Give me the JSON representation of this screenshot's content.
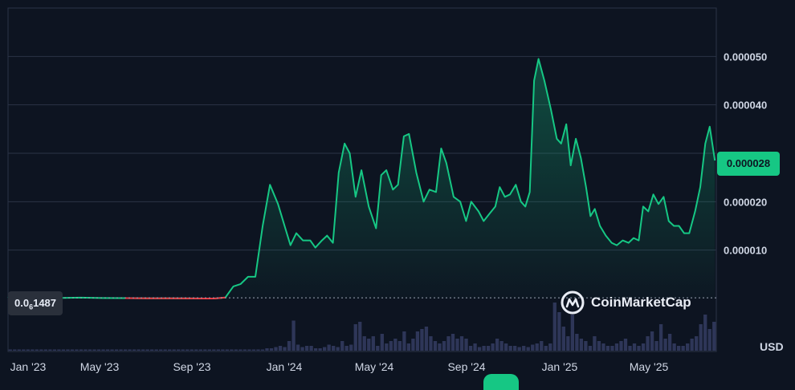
{
  "chart_data": {
    "type": "area",
    "x_labels": [
      "Jan '23",
      "May '23",
      "Sep '23",
      "Jan '24",
      "May '24",
      "Sep '24",
      "Jan '25",
      "May '25"
    ],
    "y_ticks": [
      "0.000010",
      "0.000020",
      "0.000040",
      "0.000050"
    ],
    "ylim": [
      0,
      6e-05
    ],
    "current_price_label": "0.000028",
    "baseline": {
      "prefix": "0.0",
      "zeros": "6",
      "suffix": "1487",
      "value": 1.487e-07
    },
    "currency": "USD",
    "line_color": "#16c784",
    "down_color": "#ea3943",
    "volume_color": "#2e3658",
    "series": [
      {
        "values": [
          1.5e-07,
          1.5e-07,
          1.5e-07,
          1.5e-07,
          1.5e-07,
          1.5e-07,
          1.5e-07,
          1.5e-07,
          1.5e-07,
          1.5e-07,
          1.5e-07,
          1.5e-07,
          1.5e-07,
          1.5e-07,
          1.5e-07,
          1.5e-07,
          1.5e-07,
          1.5e-07,
          1.5e-07,
          1.5e-07,
          1.5e-07,
          1.5e-07,
          1.5e-07,
          1.5e-07,
          1.5e-07,
          1.5e-07,
          1.5e-07,
          1.5e-07,
          1.5e-07,
          1.5e-07,
          1.5e-07,
          1.5e-07,
          1.5e-07,
          1.5e-07,
          1.5e-07,
          1.5e-07,
          1.5e-07,
          1.5e-07,
          1.5e-07,
          1.5e-07,
          1.5e-07,
          1.5e-07,
          1.5e-07,
          1.5e-07,
          1.5e-07,
          1.5e-07,
          1.5e-07,
          1.5e-07,
          1.5e-07,
          1.5e-07,
          1.5e-07,
          1.5e-07,
          1.5e-07,
          1.5e-07,
          1.5e-07,
          1.5e-07,
          1.5e-07,
          1.5e-07,
          1.5e-07,
          1.5e-07,
          1.5e-07,
          1.5e-07,
          1.5e-07,
          1.5e-07,
          1.5e-07,
          1.5e-07,
          1.5e-07,
          1.5e-07,
          1.5e-07,
          1.5e-07,
          1.5e-07,
          1.5e-07,
          1.5e-07,
          1.5e-07,
          1.5e-07,
          1.5e-07,
          1.5e-07,
          1.5e-07,
          1.5e-07,
          1.5e-07,
          1.5e-07,
          1.5e-07,
          1.5e-07,
          1.5e-07,
          1.5e-07,
          1.5e-07,
          1.5e-07,
          1.5e-07,
          1.5e-07,
          1.5e-07,
          1.5e-07,
          1.5e-07,
          1.5e-07,
          1.5e-07,
          1.5e-07,
          1.5e-07,
          1.5e-07,
          1.5e-07,
          1.5e-07,
          1.5e-07
        ]
      }
    ],
    "price_points": [
      [
        "2023-01-01",
        1.5e-07
      ],
      [
        "2023-01-08",
        6e-07
      ],
      [
        "2023-01-20",
        1.5e-07
      ],
      [
        "2023-02-15",
        1.5e-07
      ],
      [
        "2023-03-15",
        1.2e-07
      ],
      [
        "2023-04-10",
        1.8e-07
      ],
      [
        "2023-05-10",
        1e-07
      ],
      [
        "2023-06-10",
        8e-08
      ],
      [
        "2023-07-10",
        5e-08
      ],
      [
        "2023-08-10",
        3e-08
      ],
      [
        "2023-09-10",
        1e-08
      ],
      [
        "2023-10-10",
        0.0
      ],
      [
        "2023-10-25",
        2e-07
      ],
      [
        "2023-11-05",
        2.5e-06
      ],
      [
        "2023-11-15",
        3e-06
      ],
      [
        "2023-11-25",
        4.5e-06
      ],
      [
        "2023-12-05",
        4.5e-06
      ],
      [
        "2023-12-15",
        1.5e-05
      ],
      [
        "2023-12-25",
        2.35e-05
      ],
      [
        "2024-01-05",
        1.95e-05
      ],
      [
        "2024-01-15",
        1.45e-05
      ],
      [
        "2024-01-22",
        1.1e-05
      ],
      [
        "2024-01-30",
        1.35e-05
      ],
      [
        "2024-02-08",
        1.2e-05
      ],
      [
        "2024-02-18",
        1.2e-05
      ],
      [
        "2024-02-25",
        1.05e-05
      ],
      [
        "2024-03-05",
        1.2e-05
      ],
      [
        "2024-03-12",
        1.3e-05
      ],
      [
        "2024-03-20",
        1.15e-05
      ],
      [
        "2024-03-28",
        2.6e-05
      ],
      [
        "2024-04-05",
        3.2e-05
      ],
      [
        "2024-04-12",
        3e-05
      ],
      [
        "2024-04-20",
        2.1e-05
      ],
      [
        "2024-04-28",
        2.65e-05
      ],
      [
        "2024-05-08",
        1.9e-05
      ],
      [
        "2024-05-18",
        1.45e-05
      ],
      [
        "2024-05-25",
        2.55e-05
      ],
      [
        "2024-06-01",
        2.65e-05
      ],
      [
        "2024-06-10",
        2.25e-05
      ],
      [
        "2024-06-17",
        2.35e-05
      ],
      [
        "2024-06-25",
        3.35e-05
      ],
      [
        "2024-07-02",
        3.4e-05
      ],
      [
        "2024-07-12",
        2.6e-05
      ],
      [
        "2024-07-22",
        2e-05
      ],
      [
        "2024-07-30",
        2.25e-05
      ],
      [
        "2024-08-08",
        2.2e-05
      ],
      [
        "2024-08-15",
        3.1e-05
      ],
      [
        "2024-08-22",
        2.8e-05
      ],
      [
        "2024-09-01",
        2.1e-05
      ],
      [
        "2024-09-10",
        2e-05
      ],
      [
        "2024-09-18",
        1.6e-05
      ],
      [
        "2024-09-25",
        2e-05
      ],
      [
        "2024-10-05",
        1.8e-05
      ],
      [
        "2024-10-12",
        1.6e-05
      ],
      [
        "2024-10-20",
        1.75e-05
      ],
      [
        "2024-10-28",
        1.9e-05
      ],
      [
        "2024-11-03",
        2.3e-05
      ],
      [
        "2024-11-10",
        2.1e-05
      ],
      [
        "2024-11-17",
        2.15e-05
      ],
      [
        "2024-11-25",
        2.35e-05
      ],
      [
        "2024-12-02",
        2e-05
      ],
      [
        "2024-12-08",
        1.9e-05
      ],
      [
        "2024-12-14",
        2.2e-05
      ],
      [
        "2024-12-20",
        4.5e-05
      ],
      [
        "2024-12-26",
        4.95e-05
      ],
      [
        "2025-01-03",
        4.5e-05
      ],
      [
        "2025-01-12",
        3.9e-05
      ],
      [
        "2025-01-20",
        3.3e-05
      ],
      [
        "2025-01-26",
        3.2e-05
      ],
      [
        "2025-02-02",
        3.6e-05
      ],
      [
        "2025-02-08",
        2.75e-05
      ],
      [
        "2025-02-15",
        3.3e-05
      ],
      [
        "2025-02-22",
        2.9e-05
      ],
      [
        "2025-03-01",
        2.3e-05
      ],
      [
        "2025-03-07",
        1.7e-05
      ],
      [
        "2025-03-13",
        1.85e-05
      ],
      [
        "2025-03-20",
        1.5e-05
      ],
      [
        "2025-03-28",
        1.3e-05
      ],
      [
        "2025-04-05",
        1.15e-05
      ],
      [
        "2025-04-12",
        1.1e-05
      ],
      [
        "2025-04-20",
        1.2e-05
      ],
      [
        "2025-04-28",
        1.15e-05
      ],
      [
        "2025-05-05",
        1.25e-05
      ],
      [
        "2025-05-12",
        1.2e-05
      ],
      [
        "2025-05-18",
        1.9e-05
      ],
      [
        "2025-05-25",
        1.8e-05
      ],
      [
        "2025-06-01",
        2.15e-05
      ],
      [
        "2025-06-08",
        1.95e-05
      ],
      [
        "2025-06-15",
        2.1e-05
      ],
      [
        "2025-06-22",
        1.6e-05
      ],
      [
        "2025-06-29",
        1.5e-05
      ],
      [
        "2025-07-06",
        1.5e-05
      ],
      [
        "2025-07-13",
        1.35e-05
      ],
      [
        "2025-07-20",
        1.35e-05
      ],
      [
        "2025-07-28",
        1.8e-05
      ],
      [
        "2025-08-04",
        2.3e-05
      ],
      [
        "2025-08-11",
        3.2e-05
      ],
      [
        "2025-08-17",
        3.55e-05
      ],
      [
        "2025-08-24",
        2.85e-05
      ]
    ],
    "volume": [
      1,
      1,
      1,
      1,
      1,
      1,
      1,
      1,
      1,
      1,
      1,
      1,
      1,
      1,
      1,
      1,
      1,
      1,
      1,
      1,
      1,
      1,
      1,
      1,
      1,
      1,
      1,
      1,
      1,
      1,
      1,
      1,
      1,
      1,
      1,
      1,
      1,
      1,
      1,
      1,
      1,
      1,
      1,
      1,
      1,
      1,
      1,
      1,
      1,
      1,
      1,
      1,
      1,
      1,
      1,
      1,
      1,
      1,
      2,
      2,
      3,
      4,
      3,
      8,
      25,
      5,
      3,
      4,
      4,
      2,
      2,
      3,
      5,
      4,
      3,
      8,
      4,
      5,
      22,
      24,
      12,
      10,
      12,
      4,
      14,
      6,
      8,
      10,
      8,
      16,
      6,
      10,
      16,
      18,
      20,
      12,
      8,
      6,
      8,
      12,
      14,
      10,
      12,
      10,
      4,
      6,
      3,
      4,
      4,
      6,
      10,
      8,
      6,
      4,
      4,
      3,
      4,
      3,
      5,
      6,
      8,
      4,
      6,
      40,
      32,
      20,
      12,
      30,
      14,
      10,
      8,
      4,
      12,
      8,
      6,
      4,
      4,
      6,
      8,
      10,
      4,
      6,
      4,
      6,
      12,
      16,
      8,
      22,
      10,
      14,
      6,
      4,
      4,
      6,
      10,
      12,
      22,
      30,
      18,
      24
    ]
  }
}
